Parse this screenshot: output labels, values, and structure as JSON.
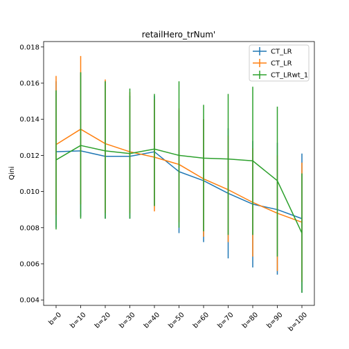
{
  "chart_data": {
    "type": "line",
    "title": "retailHero_trNum'",
    "xlabel": "",
    "ylabel": "Qini",
    "categories": [
      "b=0",
      "b=10",
      "b=20",
      "b=30",
      "b=40",
      "b=50",
      "b=60",
      "b=70",
      "b=80",
      "b=90",
      "b=100"
    ],
    "ylim": [
      0.0037,
      0.0183
    ],
    "yticks": [
      "0.004",
      "0.006",
      "0.008",
      "0.010",
      "0.012",
      "0.014",
      "0.016",
      "0.018"
    ],
    "ytick_values": [
      0.004,
      0.006,
      0.008,
      0.01,
      0.012,
      0.014,
      0.016,
      0.018
    ],
    "grid": false,
    "legend_position": "top-right",
    "error_bars": true,
    "series": [
      {
        "name": "CT_LR",
        "color": "#1f77b4",
        "values": [
          0.0122,
          0.01225,
          0.01195,
          0.01195,
          0.0122,
          0.0111,
          0.0106,
          0.0099,
          0.0093,
          0.009,
          0.0085
        ],
        "err_low": [
          0.008,
          0.0086,
          0.0085,
          0.0085,
          0.0092,
          0.0077,
          0.0072,
          0.0063,
          0.0058,
          0.0054,
          0.0044
        ],
        "err_high": [
          0.0161,
          0.0166,
          0.0161,
          0.0153,
          0.0153,
          0.0145,
          0.014,
          0.0135,
          0.0128,
          0.0127,
          0.0121
        ]
      },
      {
        "name": "CT_LR",
        "color": "#ff7f0e",
        "values": [
          0.0126,
          0.01345,
          0.01265,
          0.0122,
          0.0119,
          0.0115,
          0.0107,
          0.0101,
          0.0094,
          0.0088,
          0.0083
        ],
        "err_low": [
          0.0087,
          0.0093,
          0.0088,
          0.0088,
          0.0089,
          0.0083,
          0.0075,
          0.0072,
          0.0064,
          0.0056,
          0.005
        ],
        "err_high": [
          0.0164,
          0.0175,
          0.0162,
          0.0155,
          0.0151,
          0.0146,
          0.014,
          0.0131,
          0.0124,
          0.012,
          0.0116
        ]
      },
      {
        "name": "CT_LRwt_1",
        "color": "#2ca02c",
        "values": [
          0.01175,
          0.01255,
          0.01225,
          0.0121,
          0.01235,
          0.012,
          0.01185,
          0.0118,
          0.0117,
          0.0106,
          0.0077
        ],
        "err_low": [
          0.0079,
          0.0085,
          0.0085,
          0.0085,
          0.0092,
          0.008,
          0.0078,
          0.0076,
          0.0076,
          0.0064,
          0.0044
        ],
        "err_high": [
          0.0156,
          0.0166,
          0.0161,
          0.0157,
          0.0154,
          0.0161,
          0.0148,
          0.0154,
          0.0158,
          0.0147,
          0.011
        ]
      }
    ]
  }
}
